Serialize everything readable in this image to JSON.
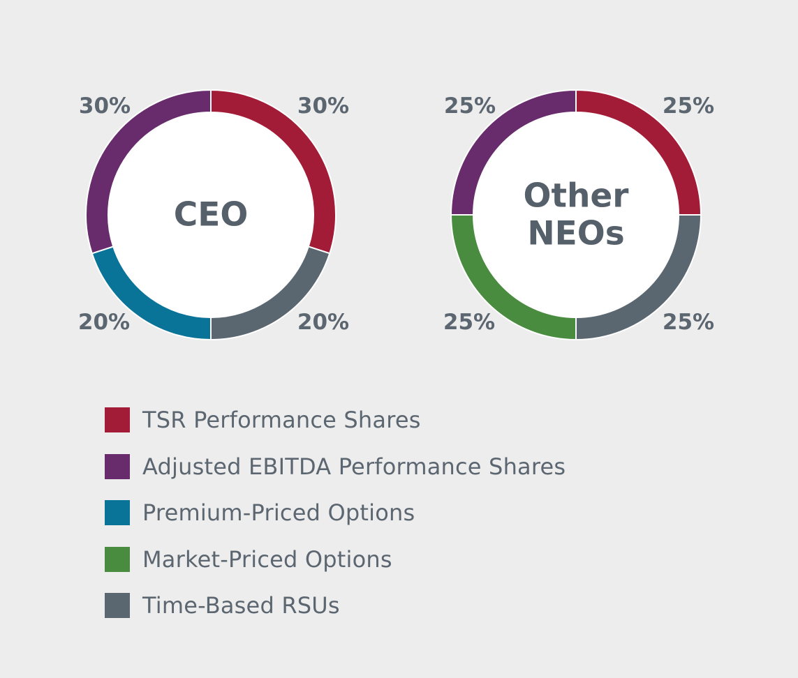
{
  "chart_data": [
    {
      "type": "pie",
      "variant": "donut",
      "title": "CEO",
      "title_lines": [
        "CEO"
      ],
      "categories": [
        "TSR Performance Shares",
        "Time-Based RSUs",
        "Premium-Priced Options",
        "Adjusted EBITDA Performance Shares"
      ],
      "values": [
        30,
        20,
        20,
        30
      ],
      "colors": [
        "#a31c37",
        "#5b6770",
        "#0a7398",
        "#682c6c"
      ],
      "labels": [
        "30%",
        "20%",
        "20%",
        "30%"
      ],
      "label_corners": [
        "top-right",
        "bottom-right",
        "bottom-left",
        "top-left"
      ]
    },
    {
      "type": "pie",
      "variant": "donut",
      "title": "Other NEOs",
      "title_lines": [
        "Other",
        "NEOs"
      ],
      "categories": [
        "TSR Performance Shares",
        "Time-Based RSUs",
        "Market-Priced Options",
        "Adjusted EBITDA Performance Shares"
      ],
      "values": [
        25,
        25,
        25,
        25
      ],
      "colors": [
        "#a31c37",
        "#5b6770",
        "#4a8c3f",
        "#682c6c"
      ],
      "labels": [
        "25%",
        "25%",
        "25%",
        "25%"
      ],
      "label_corners": [
        "top-right",
        "bottom-right",
        "bottom-left",
        "top-left"
      ]
    }
  ],
  "legend": [
    {
      "label": "TSR Performance Shares",
      "color": "#a31c37"
    },
    {
      "label": "Adjusted EBITDA Performance Shares",
      "color": "#682c6c"
    },
    {
      "label": "Premium-Priced Options",
      "color": "#0a7398"
    },
    {
      "label": "Market-Priced Options",
      "color": "#4a8c3f"
    },
    {
      "label": "Time-Based RSUs",
      "color": "#5b6770"
    }
  ]
}
